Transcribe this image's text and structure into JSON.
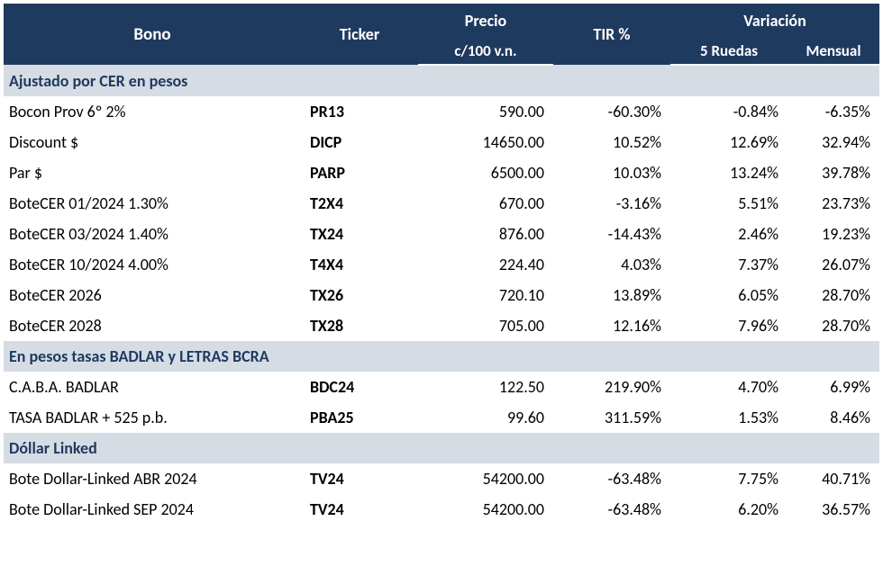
{
  "header": {
    "bono": "Bono",
    "ticker": "Ticker",
    "precio": "Precio",
    "precio_sub": "c/100 v.n.",
    "tir": "TIR %",
    "variacion": "Variación",
    "var_5r": "5 Ruedas",
    "var_m": "Mensual"
  },
  "colors": {
    "header_bg": "#1f3a5f",
    "header_fg": "#ffffff",
    "section_bg": "#d6dce4",
    "section_fg": "#1f3a5f",
    "body_fg": "#000000",
    "bg": "#ffffff"
  },
  "sections": [
    {
      "title": "Ajustado por CER en pesos",
      "rows": [
        {
          "bono": "Bocon Prov 6º 2%",
          "ticker": "PR13",
          "precio": "590.00",
          "tir": "-60.30%",
          "v5": "-0.84%",
          "vm": "-6.35%"
        },
        {
          "bono": "Discount $",
          "ticker": "DICP",
          "precio": "14650.00",
          "tir": "10.52%",
          "v5": "12.69%",
          "vm": "32.94%"
        },
        {
          "bono": "Par $",
          "ticker": "PARP",
          "precio": "6500.00",
          "tir": "10.03%",
          "v5": "13.24%",
          "vm": "39.78%"
        },
        {
          "bono": "BoteCER  01/2024  1.30%",
          "ticker": "T2X4",
          "precio": "670.00",
          "tir": "-3.16%",
          "v5": "5.51%",
          "vm": "23.73%"
        },
        {
          "bono": "BoteCER 03/2024  1.40%",
          "ticker": "TX24",
          "precio": "876.00",
          "tir": "-14.43%",
          "v5": "2.46%",
          "vm": "19.23%"
        },
        {
          "bono": "BoteCER 10/2024  4.00%",
          "ticker": "T4X4",
          "precio": "224.40",
          "tir": "4.03%",
          "v5": "7.37%",
          "vm": "26.07%"
        },
        {
          "bono": "BoteCER 2026",
          "ticker": "TX26",
          "precio": "720.10",
          "tir": "13.89%",
          "v5": "6.05%",
          "vm": "28.70%"
        },
        {
          "bono": "BoteCER 2028",
          "ticker": "TX28",
          "precio": "705.00",
          "tir": "12.16%",
          "v5": "7.96%",
          "vm": "28.70%"
        }
      ]
    },
    {
      "title": "En pesos tasas BADLAR y LETRAS BCRA",
      "rows": [
        {
          "bono": "C.A.B.A. BADLAR",
          "ticker": "BDC24",
          "precio": "122.50",
          "tir": "219.90%",
          "v5": "4.70%",
          "vm": "6.99%"
        },
        {
          "bono": "TASA BADLAR + 525 p.b.",
          "ticker": "PBA25",
          "precio": "99.60",
          "tir": "311.59%",
          "v5": "1.53%",
          "vm": "8.46%"
        }
      ]
    },
    {
      "title": "Dóllar Linked",
      "rows": [
        {
          "bono": "Bote Dollar-Linked ABR 2024",
          "ticker": "TV24",
          "precio": "54200.00",
          "tir": "-63.48%",
          "v5": "7.75%",
          "vm": "40.71%"
        },
        {
          "bono": "Bote Dollar-Linked SEP 2024",
          "ticker": "TV24",
          "precio": "54200.00",
          "tir": "-63.48%",
          "v5": "6.20%",
          "vm": "36.57%"
        }
      ]
    }
  ]
}
